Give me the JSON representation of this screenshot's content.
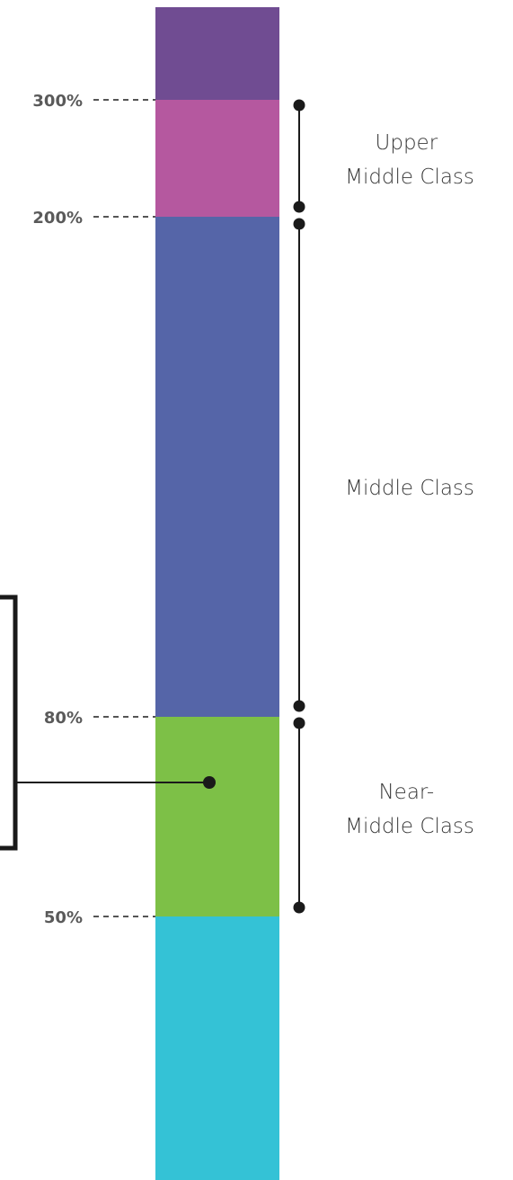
{
  "colors": {
    "purple": "#704c92",
    "pink": "#b5589f",
    "blue": "#5565a8",
    "green": "#7dc047",
    "cyan": "#34c2d6",
    "line": "#1a1a1a",
    "dash": "#555555"
  },
  "thresholds": [
    {
      "value": 300,
      "label": "300%"
    },
    {
      "value": 200,
      "label": "200%"
    },
    {
      "value": 80,
      "label": "80%"
    },
    {
      "value": 50,
      "label": "50%"
    }
  ],
  "bands": [
    {
      "name": "above-300",
      "color_key": "purple"
    },
    {
      "name": "200-300",
      "color_key": "pink"
    },
    {
      "name": "80-200",
      "color_key": "blue"
    },
    {
      "name": "50-80",
      "color_key": "green"
    },
    {
      "name": "below-50",
      "color_key": "cyan"
    }
  ],
  "classes": [
    {
      "name": "upper-middle-class",
      "lines": [
        "Upper",
        "Middle Class"
      ],
      "from": 200,
      "to": 300
    },
    {
      "name": "middle-class",
      "lines": [
        "Middle Class"
      ],
      "from": 80,
      "to": 200
    },
    {
      "name": "near-middle-class",
      "lines": [
        "Near-",
        "Middle Class"
      ],
      "from": 50,
      "to": 80
    }
  ]
}
